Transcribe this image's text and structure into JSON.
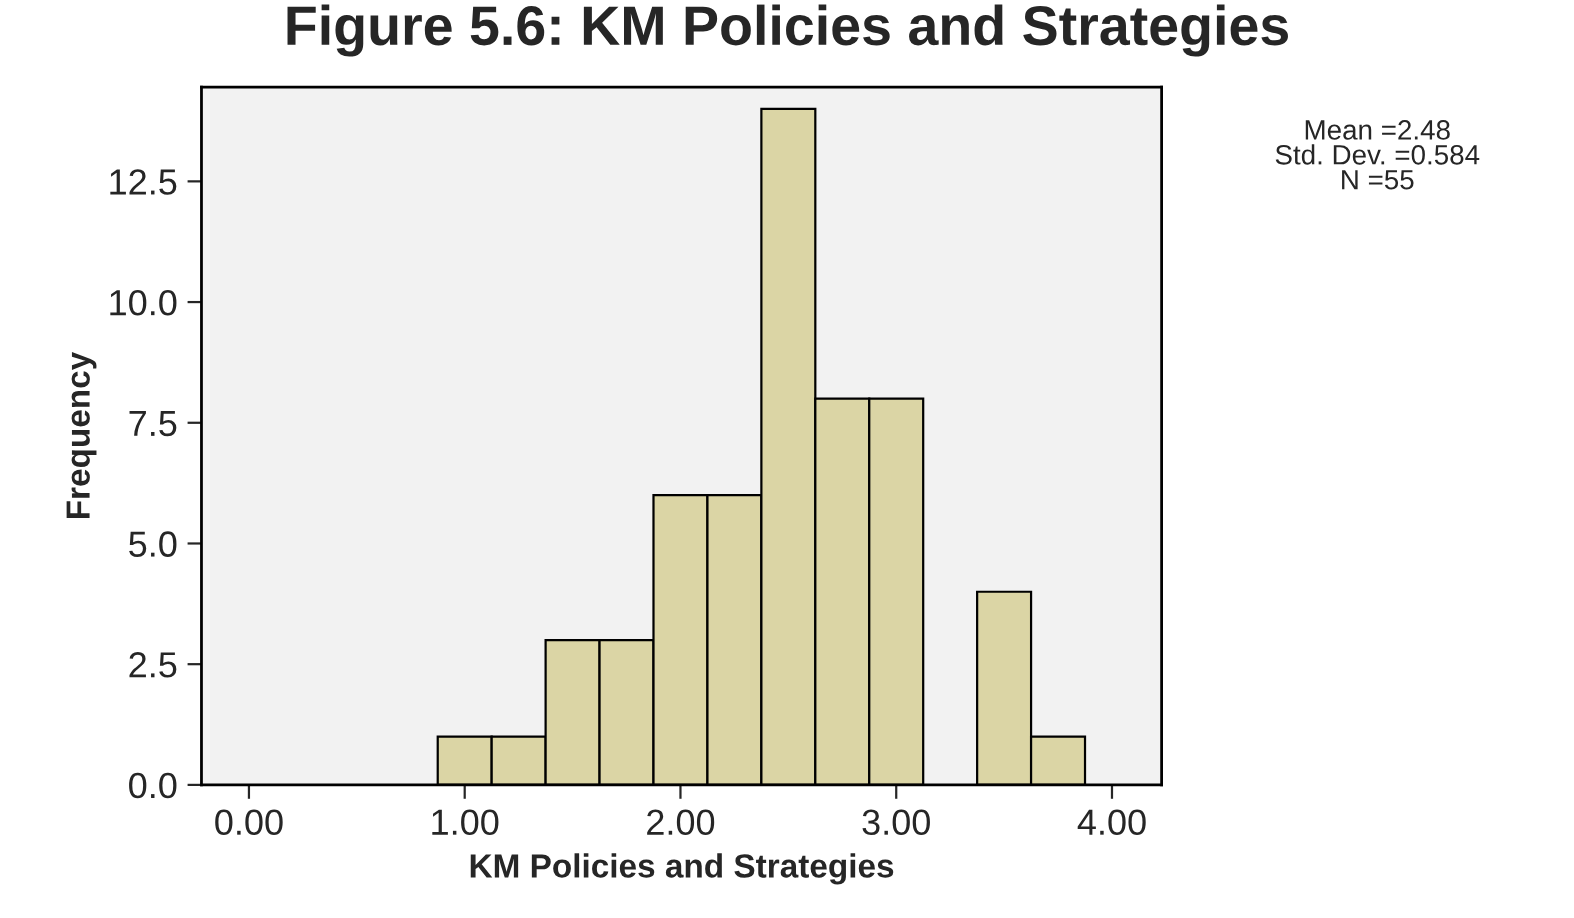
{
  "chart_data": {
    "type": "histogram",
    "title": "Figure 5.6: KM Policies and Strategies",
    "xlabel": "KM Policies and Strategies",
    "ylabel": "Frequency",
    "bins": [
      0.875,
      1.125,
      1.375,
      1.625,
      1.875,
      2.125,
      2.375,
      2.625,
      2.875,
      3.125,
      3.375,
      3.625,
      3.875
    ],
    "values": [
      1,
      1,
      3,
      3,
      6,
      6,
      14,
      8,
      8,
      0,
      4,
      1
    ],
    "color": "#dbd5a5",
    "xlim": [
      -0.22,
      4.23
    ],
    "ylim": [
      0,
      14.45
    ],
    "xticks": [
      {
        "value": 0,
        "label": "0.00"
      },
      {
        "value": 1,
        "label": "1.00"
      },
      {
        "value": 2,
        "label": "2.00"
      },
      {
        "value": 3,
        "label": "3.00"
      },
      {
        "value": 4,
        "label": "4.00"
      }
    ],
    "yticks": [
      {
        "value": 0,
        "label": "0.0"
      },
      2.5,
      {
        "value": 5,
        "label": "5.0"
      },
      7.5,
      {
        "value": 10,
        "label": "10.0"
      },
      12.5
    ],
    "annotations": [
      "Mean =2.48\nStd. Dev. =0.584\nN =55"
    ],
    "grid": false,
    "legend": false
  }
}
